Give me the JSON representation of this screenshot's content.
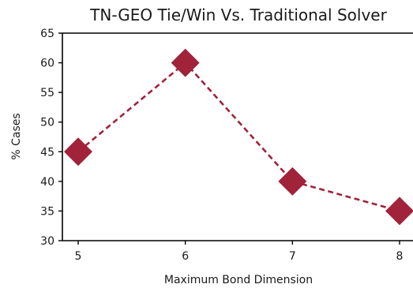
{
  "chart_data": {
    "type": "line",
    "title": "TN-GEO Tie/Win Vs. Traditional Solver",
    "xlabel": "Maximum Bond Dimension",
    "ylabel": "% Cases",
    "x": [
      5,
      6,
      7,
      8
    ],
    "xticks": [
      "5",
      "6",
      "7",
      "8"
    ],
    "yticks": [
      "30",
      "35",
      "40",
      "45",
      "50",
      "55",
      "60",
      "65"
    ],
    "ylim": [
      30,
      65
    ],
    "grid": false,
    "series": [
      {
        "values": [
          45,
          60,
          40,
          35
        ],
        "color": "#a0233a",
        "marker": "diamond",
        "line_style": "dashed"
      }
    ]
  }
}
